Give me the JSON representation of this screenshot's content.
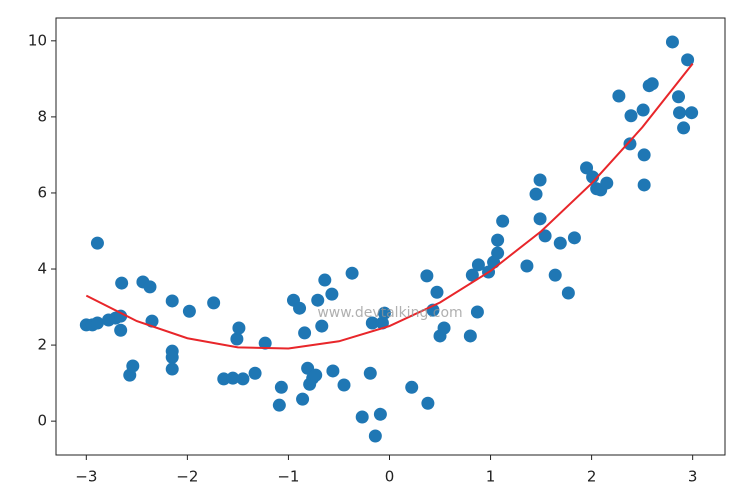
{
  "chart_data": {
    "type": "scatter",
    "annotation": "www.devtalking.com",
    "xlim": [
      -3.3,
      3.32
    ],
    "ylim": [
      -0.89,
      10.6
    ],
    "xticks": [
      {
        "value": -3,
        "label": "−3"
      },
      {
        "value": -2,
        "label": "−2"
      },
      {
        "value": -1,
        "label": "−1"
      },
      0,
      1,
      2,
      3
    ],
    "yticks": [
      0,
      2,
      4,
      6,
      8,
      10
    ],
    "series": [
      {
        "type": "scatter",
        "color": "#1f77b4",
        "x": [
          -3.0,
          -2.94,
          -2.89,
          -2.89,
          -2.78,
          -2.71,
          -2.66,
          -2.66,
          -2.65,
          -2.57,
          -2.54,
          -2.44,
          -2.37,
          -2.35,
          -2.15,
          -2.15,
          -2.15,
          -2.15,
          -1.98,
          -1.74,
          -1.64,
          -1.55,
          -1.51,
          -1.49,
          -1.45,
          -1.33,
          -1.23,
          -1.09,
          -1.07,
          -0.95,
          -0.89,
          -0.86,
          -0.84,
          -0.81,
          -0.79,
          -0.76,
          -0.73,
          -0.71,
          -0.67,
          -0.64,
          -0.57,
          -0.56,
          -0.45,
          -0.37,
          -0.27,
          -0.19,
          -0.17,
          -0.14,
          -0.09,
          -0.07,
          -0.05,
          0.22,
          0.37,
          0.38,
          0.43,
          0.47,
          0.5,
          0.54,
          0.8,
          0.82,
          0.87,
          0.88,
          0.98,
          1.03,
          1.07,
          1.07,
          1.12,
          1.36,
          1.45,
          1.49,
          1.49,
          1.54,
          1.64,
          1.69,
          1.77,
          1.83,
          1.95,
          2.01,
          2.05,
          2.09,
          2.15,
          2.27,
          2.38,
          2.39,
          2.51,
          2.52,
          2.52,
          2.57,
          2.6,
          2.8,
          2.86,
          2.87,
          2.91,
          2.95,
          2.99
        ],
        "values": [
          2.53,
          2.53,
          2.58,
          4.68,
          2.66,
          2.71,
          2.39,
          2.76,
          3.63,
          1.21,
          1.45,
          3.66,
          3.53,
          2.63,
          3.16,
          1.84,
          1.68,
          1.37,
          2.89,
          3.11,
          1.11,
          1.13,
          2.16,
          2.45,
          1.11,
          1.26,
          2.05,
          0.42,
          0.89,
          3.18,
          2.97,
          0.58,
          2.32,
          1.39,
          0.97,
          1.13,
          1.21,
          3.18,
          2.5,
          3.71,
          3.34,
          1.32,
          0.95,
          3.89,
          0.11,
          1.26,
          2.58,
          -0.39,
          0.18,
          2.58,
          2.84,
          0.89,
          3.82,
          0.47,
          2.92,
          3.39,
          2.24,
          2.45,
          2.24,
          3.84,
          2.87,
          4.11,
          3.92,
          4.18,
          4.42,
          4.76,
          5.26,
          4.08,
          5.97,
          6.34,
          5.32,
          4.87,
          3.84,
          4.68,
          3.37,
          4.82,
          6.66,
          6.42,
          6.11,
          6.08,
          6.26,
          8.55,
          7.29,
          8.03,
          8.18,
          7.0,
          6.21,
          8.82,
          8.87,
          9.97,
          8.53,
          8.11,
          7.71,
          9.5,
          8.11
        ]
      },
      {
        "type": "line",
        "color": "#e8262a",
        "x": [
          -3,
          -2.5,
          -2,
          -1.5,
          -1,
          -0.5,
          0,
          0.5,
          1,
          1.5,
          2,
          2.5,
          3
        ],
        "values": [
          3.3,
          2.63,
          2.18,
          1.94,
          1.91,
          2.1,
          2.5,
          3.12,
          3.95,
          4.99,
          6.25,
          7.72,
          9.4
        ]
      }
    ]
  }
}
